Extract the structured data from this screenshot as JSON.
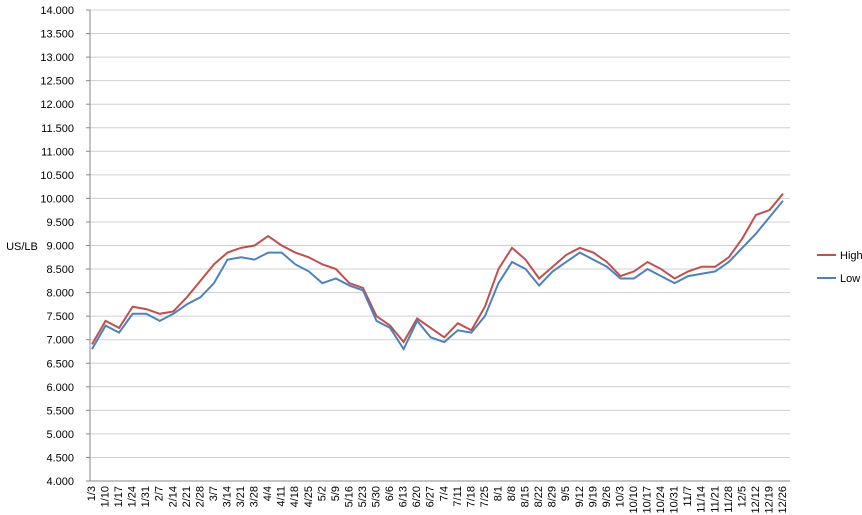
{
  "chart_data": {
    "type": "line",
    "y_label": "US/LB",
    "categories": [
      "1/3",
      "1/10",
      "1/17",
      "1/24",
      "1/31",
      "2/7",
      "2/14",
      "2/21",
      "2/28",
      "3/7",
      "3/14",
      "3/21",
      "3/28",
      "4/4",
      "4/11",
      "4/18",
      "4/25",
      "5/2",
      "5/9",
      "5/16",
      "5/23",
      "5/30",
      "6/6",
      "6/13",
      "6/20",
      "6/27",
      "7/4",
      "7/11",
      "7/18",
      "7/25",
      "8/1",
      "8/8",
      "8/15",
      "8/22",
      "8/29",
      "9/5",
      "9/12",
      "9/19",
      "9/26",
      "10/3",
      "10/10",
      "10/17",
      "10/24",
      "10/31",
      "11/7",
      "11/14",
      "11/21",
      "11/28",
      "12/5",
      "12/12",
      "12/19",
      "12/26"
    ],
    "series": [
      {
        "name": "High",
        "color": "#c0504d",
        "values": [
          6.9,
          7.4,
          7.25,
          7.7,
          7.65,
          7.55,
          7.6,
          7.9,
          8.25,
          8.6,
          8.85,
          8.95,
          9.0,
          9.2,
          9.0,
          8.85,
          8.75,
          8.6,
          8.5,
          8.2,
          8.1,
          7.5,
          7.3,
          6.95,
          7.45,
          7.25,
          7.05,
          7.35,
          7.2,
          7.7,
          8.5,
          8.95,
          8.7,
          8.3,
          8.55,
          8.8,
          8.95,
          8.85,
          8.65,
          8.35,
          8.45,
          8.65,
          8.5,
          8.3,
          8.45,
          8.55,
          8.55,
          8.75,
          9.15,
          9.65,
          9.75,
          10.1
        ]
      },
      {
        "name": "Low",
        "color": "#4f81bd",
        "values": [
          6.8,
          7.3,
          7.15,
          7.55,
          7.55,
          7.4,
          7.55,
          7.75,
          7.9,
          8.2,
          8.7,
          8.75,
          8.7,
          8.85,
          8.85,
          8.6,
          8.45,
          8.2,
          8.3,
          8.15,
          8.05,
          7.4,
          7.25,
          6.8,
          7.4,
          7.05,
          6.95,
          7.2,
          7.15,
          7.5,
          8.2,
          8.65,
          8.5,
          8.15,
          8.45,
          8.65,
          8.85,
          8.7,
          8.55,
          8.3,
          8.3,
          8.5,
          8.35,
          8.2,
          8.35,
          8.4,
          8.45,
          8.65,
          8.95,
          9.25,
          9.6,
          9.95
        ]
      }
    ],
    "ylim": [
      4,
      14
    ],
    "yticks": [
      {
        "value": 4,
        "label": "4.000"
      },
      {
        "value": 4.5,
        "label": "4.500"
      },
      {
        "value": 5,
        "label": "5.000"
      },
      {
        "value": 5.5,
        "label": "5.500"
      },
      {
        "value": 6,
        "label": "6.000"
      },
      {
        "value": 6.5,
        "label": "6.500"
      },
      {
        "value": 7,
        "label": "7.000"
      },
      {
        "value": 7.5,
        "label": "7.500"
      },
      {
        "value": 8,
        "label": "8.000"
      },
      {
        "value": 8.5,
        "label": "8.500"
      },
      {
        "value": 9,
        "label": "9.000"
      },
      {
        "value": 9.5,
        "label": "9.500"
      },
      {
        "value": 10,
        "label": "10.000"
      },
      {
        "value": 10.5,
        "label": "10.500"
      },
      {
        "value": 11,
        "label": "11.000"
      },
      {
        "value": 11.5,
        "label": "11.500"
      },
      {
        "value": 12,
        "label": "12.000"
      },
      {
        "value": 12.5,
        "label": "12.500"
      },
      {
        "value": 13,
        "label": "13.000"
      },
      {
        "value": 13.5,
        "label": "13.500"
      },
      {
        "value": 14,
        "label": "14.000"
      }
    ],
    "grid": true,
    "legend": "right"
  }
}
